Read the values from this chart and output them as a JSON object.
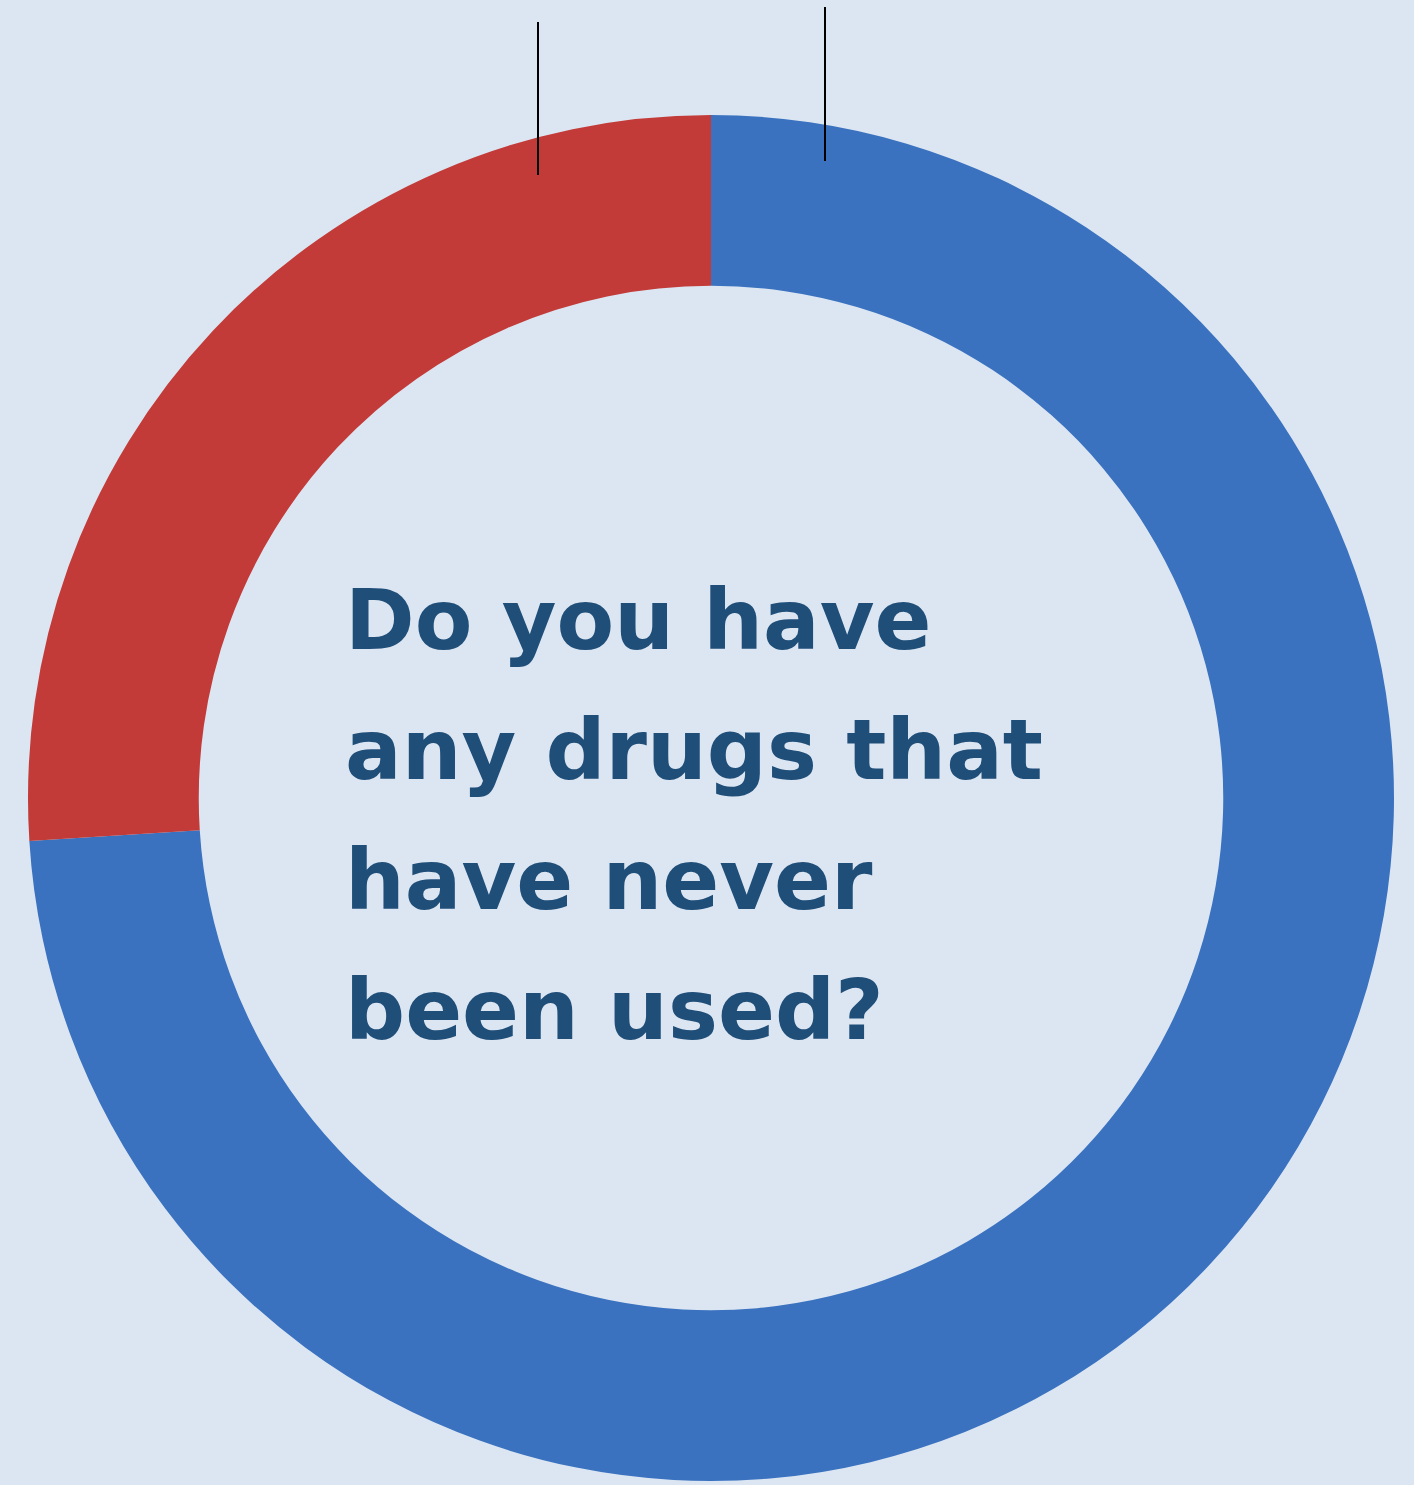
{
  "chart_data": {
    "type": "donut",
    "title": "Do you have any drugs that have never been used?",
    "categories": [
      null,
      null
    ],
    "values": [
      74,
      26
    ],
    "colors": [
      "#3a72c0",
      "#c23b38"
    ],
    "legend": false
  }
}
